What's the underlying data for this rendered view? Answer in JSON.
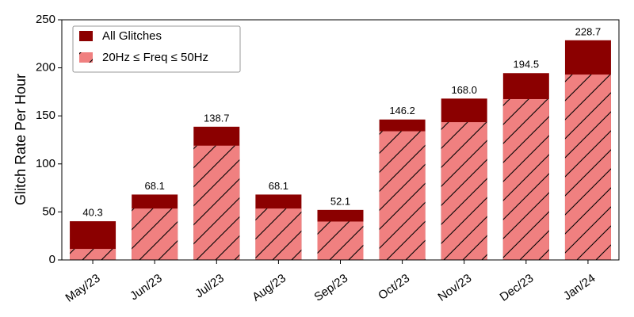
{
  "chart_data": {
    "type": "bar",
    "overlap": true,
    "y_label": "Glitch Rate Per Hour",
    "categories": [
      "May/23",
      "Jun/23",
      "Jul/23",
      "Aug/23",
      "Sep/23",
      "Oct/23",
      "Nov/23",
      "Dec/23",
      "Jan/24"
    ],
    "series": [
      {
        "name": "All Glitches",
        "color": "#8b0000",
        "values": [
          40.3,
          68.1,
          138.7,
          68.1,
          52.1,
          146.2,
          168.0,
          194.5,
          228.7
        ],
        "value_labels": [
          "40.3",
          "68.1",
          "138.7",
          "68.1",
          "52.1",
          "146.2",
          "168.0",
          "194.5",
          "228.7"
        ]
      },
      {
        "name": "20Hz ≤ Freq ≤ 50Hz",
        "color": "#f08080",
        "hatch": true,
        "values": [
          11.5,
          53.5,
          119,
          53.5,
          40,
          134,
          143.5,
          167.5,
          193
        ]
      }
    ],
    "ylim": [
      0,
      250
    ],
    "yticks": [
      0,
      50,
      100,
      150,
      200,
      250
    ],
    "grid": false,
    "legend": "upper left"
  }
}
